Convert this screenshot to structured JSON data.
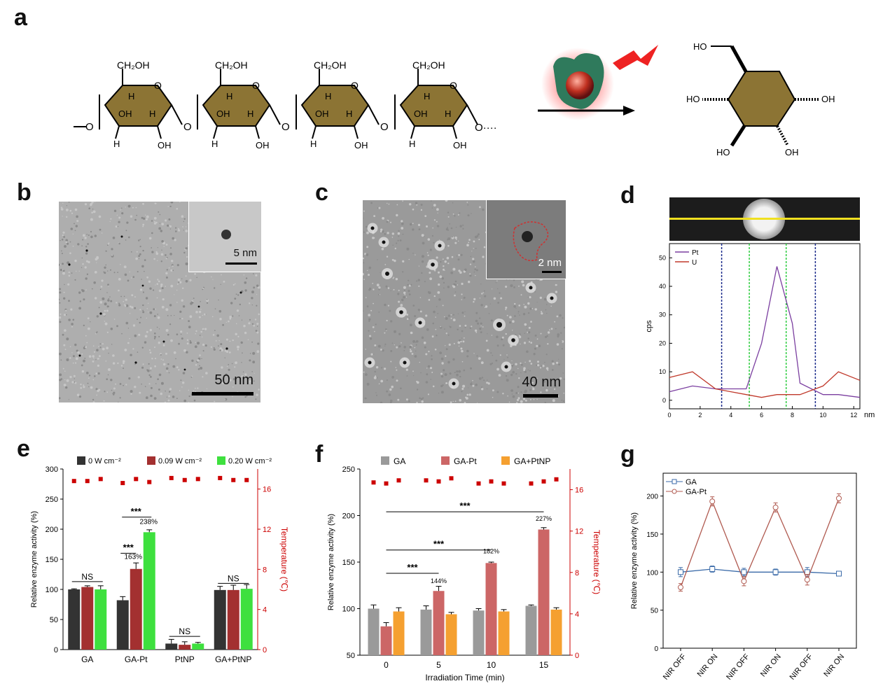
{
  "panels": {
    "a": "a",
    "b": "b",
    "c": "c",
    "d": "d",
    "e": "e",
    "f": "f",
    "g": "g"
  },
  "structure": {
    "ch2oh": "CH₂OH",
    "h": "H",
    "oh": "OH",
    "ho": "HO",
    "o": "O",
    "chain_end": "O····",
    "chain_start": "O"
  },
  "panel_b": {
    "scale_main": "50 nm",
    "scale_inset": "5 nm"
  },
  "panel_c": {
    "scale_main": "40 nm",
    "scale_inset": "2 nm"
  },
  "panel_d": {
    "ylabel": "cps",
    "xunit": "nm",
    "legend": [
      "Pt",
      "U"
    ],
    "colors": {
      "Pt": "#7b3fa0",
      "U": "#c0392b"
    },
    "x_ticks": [
      0,
      2,
      4,
      6,
      8,
      10,
      12
    ],
    "y_ticks": [
      0,
      10,
      20,
      30,
      40,
      50
    ],
    "chart_data": {
      "type": "line",
      "xlim": [
        0,
        12.4
      ],
      "ylim": [
        -3,
        55
      ],
      "series": [
        {
          "name": "Pt",
          "x": [
            0,
            1.5,
            3,
            4,
            5,
            6,
            7,
            8,
            8.5,
            10,
            11,
            12.4
          ],
          "y": [
            3,
            5,
            4,
            4,
            4,
            20,
            47,
            27,
            6,
            2,
            2,
            1
          ]
        },
        {
          "name": "U",
          "x": [
            0,
            1.5,
            3,
            4,
            5,
            6,
            7,
            8,
            8.5,
            10,
            11,
            12.4
          ],
          "y": [
            8,
            10,
            4,
            3,
            2,
            1,
            2,
            2,
            2,
            5,
            10,
            7
          ]
        }
      ],
      "vlines": [
        3.4,
        5.2,
        7.6,
        9.5
      ]
    }
  },
  "panel_e": {
    "ylabel": "Relative enzyme activity (%)",
    "y2label": "Temperature (℃)",
    "legend": [
      "0 W cm⁻²",
      "0.09 W cm⁻²",
      "0.20 W cm⁻²"
    ],
    "colors": [
      "#333333",
      "#a33030",
      "#3ee03e"
    ],
    "annotations": [
      "NS",
      "***",
      "***",
      "163%",
      "238%",
      "NS",
      "NS"
    ],
    "y_ticks": [
      0,
      50,
      100,
      150,
      200,
      250,
      300
    ],
    "y2_ticks": [
      0,
      4,
      8,
      12,
      16
    ],
    "chart_data": {
      "type": "bar",
      "categories": [
        "GA",
        "GA-Pt",
        "PtNP",
        "GA+PtNP"
      ],
      "ylim": [
        0,
        300
      ],
      "y2lim": [
        0,
        18
      ],
      "series": [
        {
          "name": "0 W cm⁻²",
          "values": [
            100,
            82,
            10,
            99
          ],
          "err": [
            1,
            6,
            7,
            6
          ]
        },
        {
          "name": "0.09 W cm⁻²",
          "values": [
            104,
            134,
            8,
            99
          ],
          "err": [
            2,
            10,
            5,
            8
          ]
        },
        {
          "name": "0.20 W cm⁻²",
          "values": [
            100,
            195,
            10,
            101
          ],
          "err": [
            6,
            4,
            2,
            7
          ]
        }
      ],
      "temperature": [
        [
          16.8,
          16.8,
          17.0
        ],
        [
          16.6,
          17.0,
          16.7
        ],
        [
          17.1,
          16.9,
          17.0
        ],
        [
          17.1,
          16.9,
          16.9
        ]
      ]
    }
  },
  "panel_f": {
    "ylabel": "Relative enzyme activity (%)",
    "y2label": "Temperature (℃)",
    "xlabel": "Irradiation Time (min)",
    "legend": [
      "GA",
      "GA-Pt",
      "GA+PtNP"
    ],
    "colors": [
      "#9a9a9a",
      "#cc6666",
      "#f5a030"
    ],
    "annotations": [
      "***",
      "***",
      "***",
      "144%",
      "182%",
      "227%"
    ],
    "y_ticks": [
      50,
      100,
      150,
      200,
      250
    ],
    "y2_ticks": [
      0,
      4,
      8,
      12,
      16
    ],
    "chart_data": {
      "type": "bar",
      "categories": [
        "0",
        "5",
        "10",
        "15"
      ],
      "ylim": [
        50,
        250
      ],
      "y2lim": [
        0,
        18
      ],
      "series": [
        {
          "name": "GA",
          "values": [
            100,
            99,
            98,
            103
          ],
          "err": [
            4,
            4,
            2,
            1
          ]
        },
        {
          "name": "GA-Pt",
          "values": [
            81,
            119,
            149,
            185
          ],
          "err": [
            4,
            5,
            1,
            2
          ]
        },
        {
          "name": "GA+PtNP",
          "values": [
            97,
            94,
            97,
            99
          ],
          "err": [
            4,
            2,
            2,
            2
          ]
        }
      ],
      "temperature": [
        [
          16.7,
          16.6,
          16.9
        ],
        [
          16.9,
          16.8,
          17.1
        ],
        [
          16.6,
          16.8,
          16.6
        ],
        [
          16.6,
          16.8,
          17.0
        ]
      ]
    }
  },
  "panel_g": {
    "ylabel": "Relative enzyme activity (%)",
    "legend": [
      "GA",
      "GA-Pt"
    ],
    "colors": [
      "#3a6aa8",
      "#b05a50"
    ],
    "y_ticks": [
      0,
      50,
      100,
      150,
      200
    ],
    "chart_data": {
      "type": "line",
      "categories": [
        "NIR OFF",
        "NIR ON",
        "NIR OFF",
        "NIR ON",
        "NIR OFF",
        "NIR ON"
      ],
      "ylim": [
        0,
        230
      ],
      "series": [
        {
          "name": "GA",
          "values": [
            100,
            104,
            100,
            100,
            100,
            98
          ],
          "err": [
            6,
            4,
            5,
            4,
            6,
            3
          ]
        },
        {
          "name": "GA-Pt",
          "values": [
            80,
            193,
            88,
            185,
            90,
            197
          ],
          "err": [
            5,
            6,
            6,
            6,
            7,
            6
          ]
        }
      ]
    }
  }
}
